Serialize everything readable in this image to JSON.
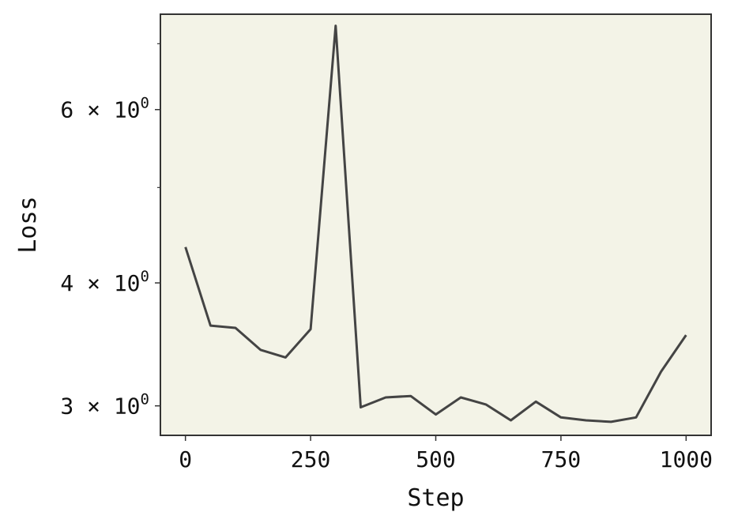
{
  "chart_data": {
    "type": "line",
    "xlabel": "Step",
    "ylabel": "Loss",
    "x_scale": "linear",
    "y_scale": "log",
    "xlim": [
      -50,
      1050
    ],
    "ylim": [
      2.8,
      7.5
    ],
    "x_ticks": [
      0,
      250,
      500,
      750,
      1000
    ],
    "x_tick_labels": [
      "0",
      "250",
      "500",
      "750",
      "1000"
    ],
    "y_ticks": [
      {
        "value": 3,
        "mantissa": "3",
        "times": "×",
        "base": "10",
        "exponent": "0"
      },
      {
        "value": 4,
        "mantissa": "4",
        "times": "×",
        "base": "10",
        "exponent": "0"
      },
      {
        "value": 6,
        "mantissa": "6",
        "times": "×",
        "base": "10",
        "exponent": "0"
      }
    ],
    "y_minor_ticks": [
      5,
      7
    ],
    "grid": false,
    "background_color": "#f3f3e7",
    "line_color": "#444444",
    "series": [
      {
        "x": [
          0,
          50,
          100,
          150,
          200,
          250,
          300,
          350,
          400,
          450,
          500,
          550,
          600,
          650,
          700,
          750,
          800,
          850,
          900,
          950,
          1000
        ],
        "y": [
          4.35,
          3.62,
          3.6,
          3.42,
          3.36,
          3.59,
          7.3,
          2.99,
          3.06,
          3.07,
          2.94,
          3.06,
          3.01,
          2.9,
          3.03,
          2.92,
          2.9,
          2.89,
          2.92,
          3.25,
          3.54
        ]
      }
    ]
  }
}
